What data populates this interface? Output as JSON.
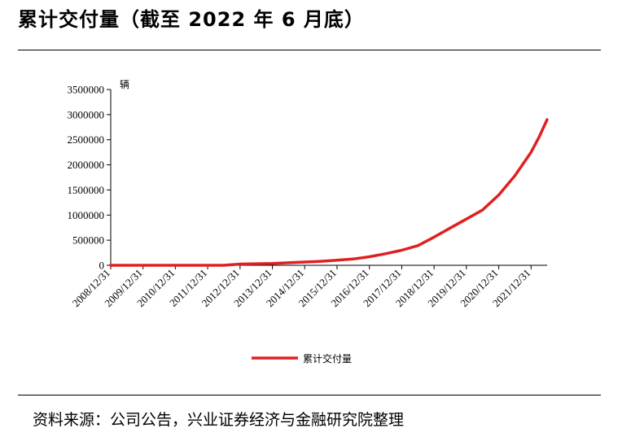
{
  "header": {
    "title": "累计交付量（截至 2022 年 6 月底）"
  },
  "footer": {
    "source": "资料来源：公司公告，兴业证券经济与金融研究院整理"
  },
  "chart_data": {
    "type": "line",
    "ylabel": "辆",
    "ylim": [
      0,
      3500000
    ],
    "yticks": [
      0,
      500000,
      1000000,
      1500000,
      2000000,
      2500000,
      3000000,
      3500000
    ],
    "ytick_labels": [
      "0",
      "500000",
      "1000000",
      "1500000",
      "2000000",
      "2500000",
      "3000000",
      "3500000"
    ],
    "xlim": [
      "2008/12/31",
      "2022/06/30"
    ],
    "xtick_labels": [
      "2008/12/31",
      "2009/12/31",
      "2010/12/31",
      "2011/12/31",
      "2012/12/31",
      "2013/12/31",
      "2014/12/31",
      "2015/12/31",
      "2016/12/31",
      "2017/12/31",
      "2018/12/31",
      "2019/12/31",
      "2020/12/31",
      "2021/12/31"
    ],
    "grid": false,
    "legend_position": "bottom",
    "series": [
      {
        "name": "累计交付量",
        "color": "#e02020",
        "x": [
          "2008/12/31",
          "2009/12/31",
          "2010/12/31",
          "2011/12/31",
          "2012/06/30",
          "2012/12/31",
          "2013/06/30",
          "2013/12/31",
          "2014/06/30",
          "2014/12/31",
          "2015/06/30",
          "2015/12/31",
          "2016/06/30",
          "2016/12/31",
          "2017/06/30",
          "2017/12/31",
          "2018/06/30",
          "2018/12/31",
          "2019/06/30",
          "2019/12/31",
          "2020/06/30",
          "2020/12/31",
          "2021/06/30",
          "2021/12/31",
          "2022/03/31",
          "2022/06/30"
        ],
        "values": [
          0,
          0,
          0,
          0,
          0,
          25000,
          30000,
          35000,
          50000,
          65000,
          80000,
          100000,
          125000,
          170000,
          230000,
          300000,
          390000,
          560000,
          740000,
          920000,
          1100000,
          1400000,
          1780000,
          2250000,
          2550000,
          2900000
        ]
      }
    ]
  }
}
